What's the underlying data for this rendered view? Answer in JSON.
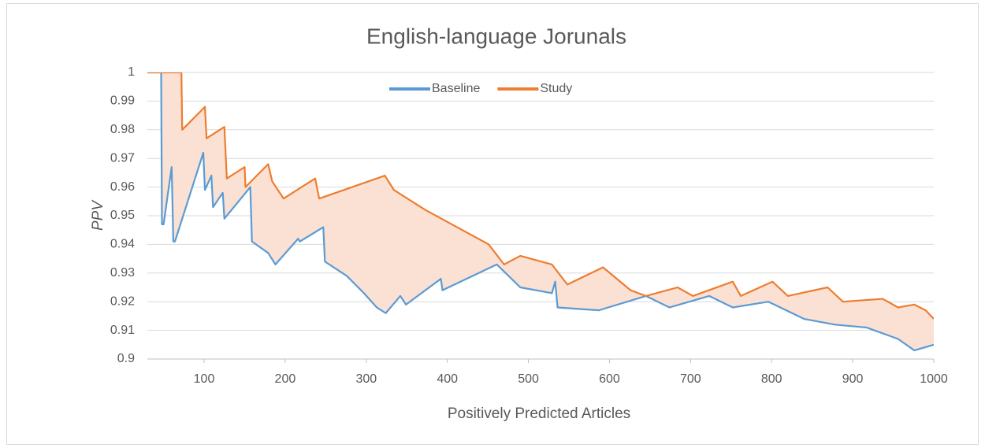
{
  "chart_data": {
    "type": "line",
    "title": "English-language Jorunals",
    "x_label": "Positively Predicted Articles",
    "y_label": "PPV",
    "xlim": [
      30,
      1000
    ],
    "xticks": [
      100,
      200,
      300,
      400,
      500,
      600,
      700,
      800,
      900,
      1000
    ],
    "ylim": [
      0.9,
      1
    ],
    "yticks": [
      0.9,
      0.91,
      0.92,
      0.93,
      0.94,
      0.95,
      0.96,
      0.97,
      0.98,
      0.99,
      1
    ],
    "grid": true,
    "legend": "top",
    "fill_between": "#fbe1d3",
    "series": [
      {
        "name": "Baseline",
        "color": "#5b9bd5",
        "x": [
          30,
          47,
          48,
          50,
          60,
          62,
          64,
          99,
          101,
          109,
          111,
          123,
          125,
          157,
          159,
          179,
          188,
          216,
          218,
          247,
          249,
          276,
          297,
          313,
          324,
          342,
          349,
          392,
          394,
          461,
          490,
          529,
          533,
          536,
          587,
          645,
          674,
          723,
          752,
          796,
          840,
          878,
          917,
          956,
          976,
          1000
        ],
        "values": [
          1,
          1,
          0.947,
          0.947,
          0.967,
          0.941,
          0.941,
          0.972,
          0.959,
          0.964,
          0.953,
          0.958,
          0.949,
          0.96,
          0.941,
          0.937,
          0.933,
          0.942,
          0.941,
          0.946,
          0.934,
          0.929,
          0.923,
          0.918,
          0.916,
          0.922,
          0.919,
          0.928,
          0.924,
          0.933,
          0.925,
          0.923,
          0.927,
          0.918,
          0.917,
          0.922,
          0.918,
          0.922,
          0.918,
          0.92,
          0.914,
          0.912,
          0.911,
          0.907,
          0.903,
          0.905
        ]
      },
      {
        "name": "Study",
        "color": "#ed7d31",
        "x": [
          30,
          72,
          73,
          101,
          103,
          125,
          128,
          150,
          151,
          179,
          184,
          198,
          237,
          242,
          323,
          334,
          373,
          412,
          451,
          470,
          490,
          529,
          548,
          592,
          626,
          645,
          684,
          703,
          752,
          762,
          801,
          820,
          869,
          888,
          937,
          956,
          976,
          990,
          1000
        ],
        "values": [
          1,
          1,
          0.98,
          0.988,
          0.977,
          0.981,
          0.963,
          0.967,
          0.96,
          0.968,
          0.962,
          0.956,
          0.963,
          0.956,
          0.964,
          0.959,
          0.952,
          0.946,
          0.94,
          0.933,
          0.936,
          0.933,
          0.926,
          0.932,
          0.924,
          0.922,
          0.925,
          0.922,
          0.927,
          0.922,
          0.927,
          0.922,
          0.925,
          0.92,
          0.921,
          0.918,
          0.919,
          0.917,
          0.914
        ]
      }
    ]
  }
}
